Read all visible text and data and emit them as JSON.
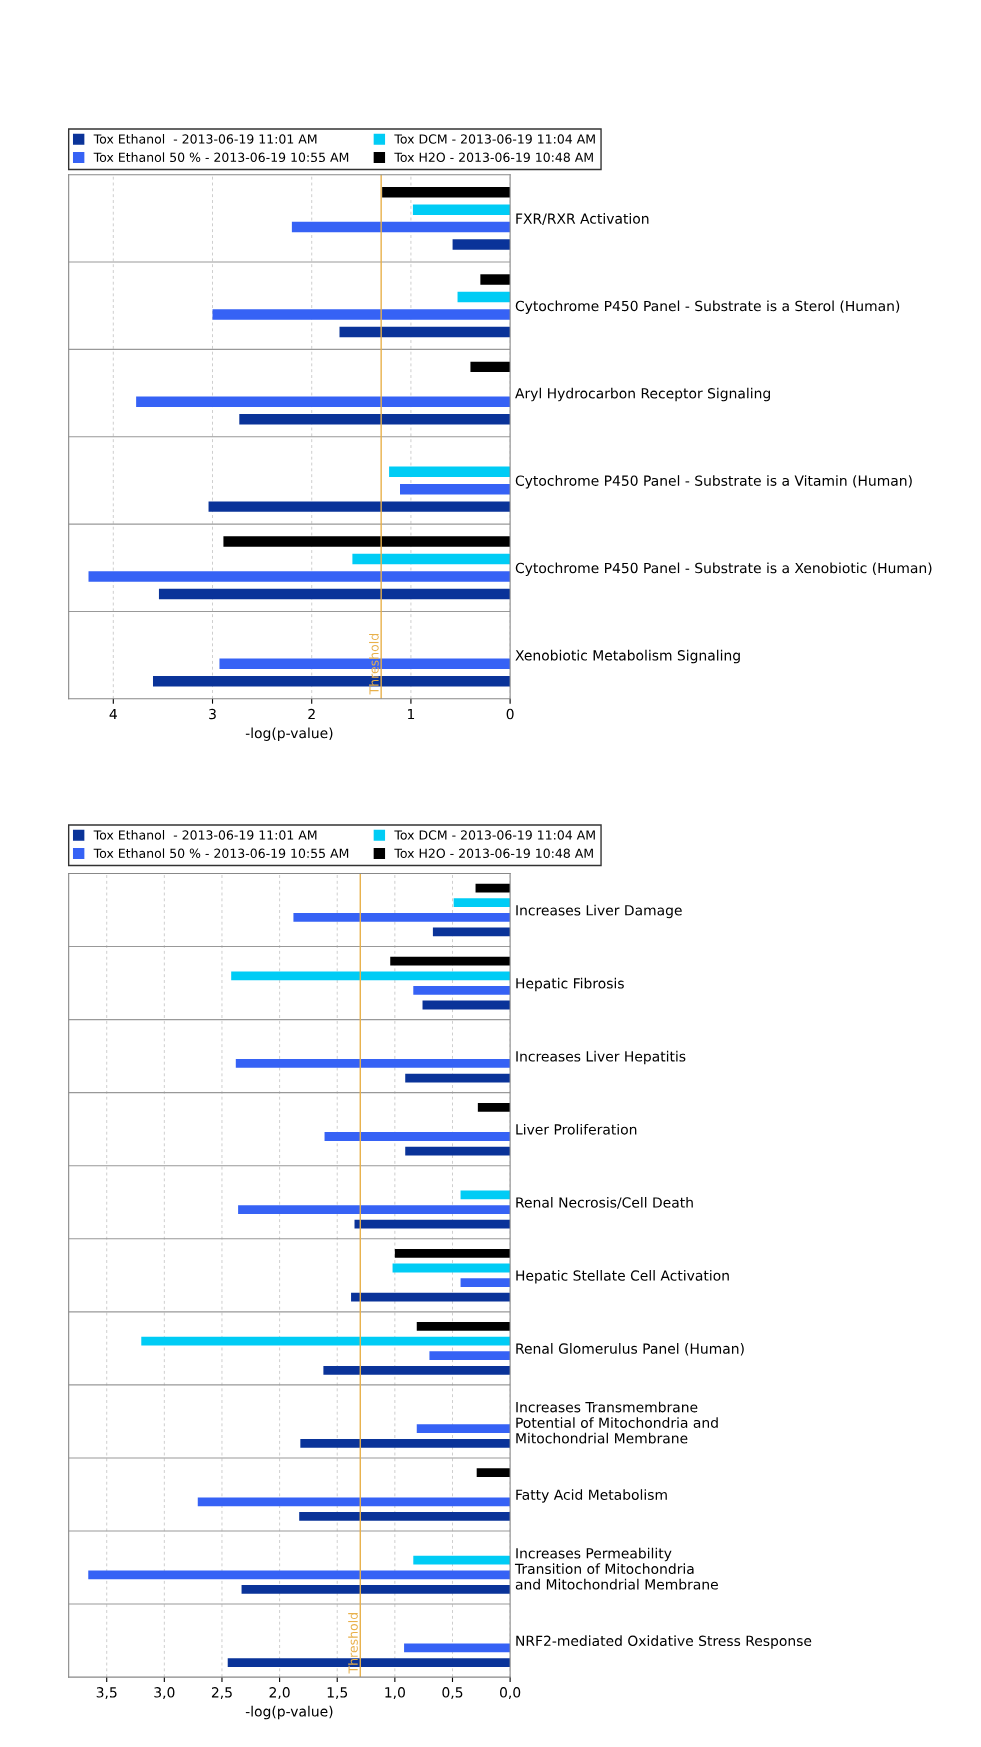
{
  "chart_data": [
    {
      "type": "bar",
      "orientation": "horizontal",
      "xlabel": "-log(p-value)",
      "legend": "top",
      "grid": "x",
      "categories": [
        "FXR/RXR Activation",
        "Cytochrome P450 Panel - Substrate is a Sterol (Human)",
        "Aryl Hydrocarbon Receptor Signaling",
        "Cytochrome P450 Panel - Substrate is a Vitamin (Human)",
        "Cytochrome P450 Panel - Substrate is a Xenobiotic (Human)",
        "Xenobiotic Metabolism Signaling"
      ],
      "series": [
        {
          "name": "Tox Ethanol  - 2013-06-19 11:01 AM",
          "color": "#0a3399",
          "values": [
            0.58,
            1.72,
            2.73,
            3.04,
            3.54,
            3.6
          ]
        },
        {
          "name": "Tox Ethanol 50 % - 2013-06-19 10:55 AM",
          "color": "#3662f5",
          "values": [
            2.2,
            3.0,
            3.77,
            1.11,
            4.25,
            2.93
          ]
        },
        {
          "name": "Tox DCM - 2013-06-19 11:04 AM",
          "color": "#00ccf5",
          "values": [
            0.98,
            0.53,
            null,
            1.22,
            1.59,
            null
          ]
        },
        {
          "name": "Tox H2O - 2013-06-19 10:48 AM",
          "color": "#000000",
          "values": [
            1.29,
            0.3,
            0.4,
            null,
            2.89,
            null
          ]
        }
      ],
      "xlim": [
        4.45,
        0
      ],
      "xticks": [
        4,
        3,
        2,
        1,
        0
      ],
      "ref_lines": [
        {
          "axis": "x",
          "value": 1.3,
          "label": "Threshold",
          "color": "#e8b04a"
        }
      ]
    },
    {
      "type": "bar",
      "orientation": "horizontal",
      "xlabel": "-log(p-value)",
      "legend": "top",
      "grid": "x",
      "categories": [
        "Increases Liver Damage",
        "Hepatic Fibrosis",
        "Increases Liver Hepatitis",
        "Liver Proliferation",
        "Renal Necrosis/Cell Death",
        "Hepatic Stellate Cell Activation",
        "Renal Glomerulus Panel (Human)",
        "Increases Transmembrane\nPotential of Mitochondria and\nMitochondrial Membrane",
        "Fatty Acid Metabolism",
        "Increases Permeability\nTransition of Mitochondria\nand Mitochondrial Membrane",
        "NRF2-mediated Oxidative Stress Response"
      ],
      "series": [
        {
          "name": "Tox Ethanol  - 2013-06-19 11:01 AM",
          "color": "#0a3399",
          "values": [
            0.67,
            0.76,
            0.91,
            0.91,
            1.35,
            1.38,
            1.62,
            1.82,
            1.83,
            2.33,
            2.45
          ]
        },
        {
          "name": "Tox Ethanol 50 % - 2013-06-19 10:55 AM",
          "color": "#3662f5",
          "values": [
            1.88,
            0.84,
            2.38,
            1.61,
            2.36,
            0.43,
            0.7,
            0.81,
            2.71,
            3.66,
            0.92
          ]
        },
        {
          "name": "Tox DCM - 2013-06-19 11:04 AM",
          "color": "#00ccf5",
          "values": [
            0.49,
            2.42,
            null,
            null,
            0.43,
            1.02,
            3.2,
            null,
            null,
            0.84,
            null
          ]
        },
        {
          "name": "Tox H2O - 2013-06-19 10:48 AM",
          "color": "#000000",
          "values": [
            0.3,
            1.04,
            null,
            0.28,
            null,
            1.0,
            0.81,
            null,
            0.29,
            null,
            null
          ]
        }
      ],
      "xlim": [
        3.83,
        0
      ],
      "xticks": [
        {
          "value": 3.5,
          "label": "3,5"
        },
        {
          "value": 3.0,
          "label": "3,0"
        },
        {
          "value": 2.5,
          "label": "2,5"
        },
        {
          "value": 2.0,
          "label": "2,0"
        },
        {
          "value": 1.5,
          "label": "1,5"
        },
        {
          "value": 1.0,
          "label": "1,0"
        },
        {
          "value": 0.5,
          "label": "0,5"
        },
        {
          "value": 0.0,
          "label": "0,0"
        }
      ],
      "ref_lines": [
        {
          "axis": "x",
          "value": 1.3,
          "label": "Threshold",
          "color": "#e8b04a"
        }
      ]
    }
  ]
}
